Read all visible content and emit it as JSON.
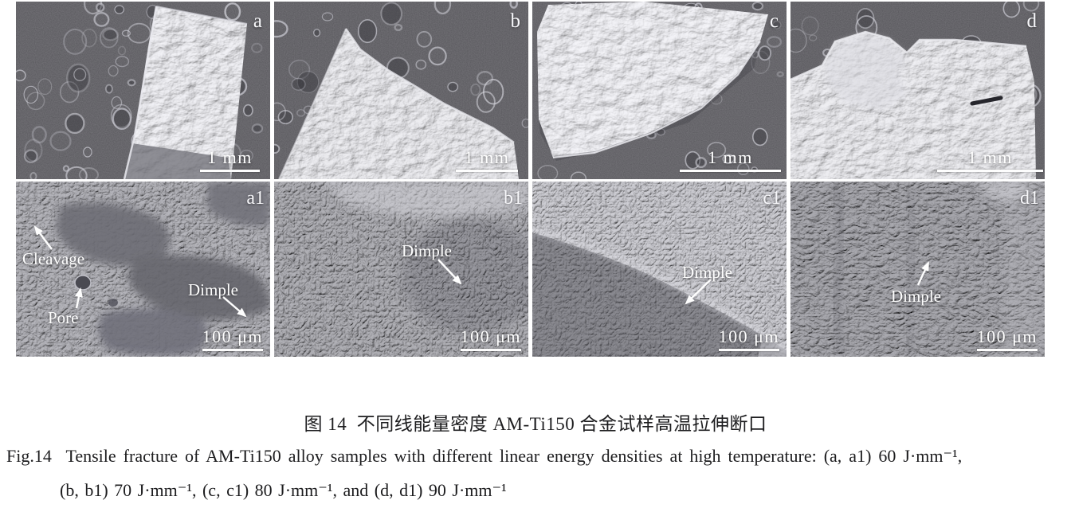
{
  "figure": {
    "panels": [
      {
        "id": "a",
        "label": "a",
        "scale_bar": "1 mm"
      },
      {
        "id": "b",
        "label": "b",
        "scale_bar": "1 mm"
      },
      {
        "id": "c",
        "label": "c",
        "scale_bar": "1 mm"
      },
      {
        "id": "d",
        "label": "d",
        "scale_bar": "1 mm"
      },
      {
        "id": "a1",
        "label": "a1",
        "scale_bar": "100 μm",
        "annotations": {
          "cleavage": "Cleavage",
          "pore": "Pore",
          "dimple": "Dimple"
        }
      },
      {
        "id": "b1",
        "label": "b1",
        "scale_bar": "100 μm",
        "annotations": {
          "dimple": "Dimple"
        }
      },
      {
        "id": "c1",
        "label": "c1",
        "scale_bar": "100 μm",
        "annotations": {
          "dimple": "Dimple"
        }
      },
      {
        "id": "d1",
        "label": "d1",
        "scale_bar": "100 μm",
        "annotations": {
          "dimple": "Dimple"
        }
      }
    ]
  },
  "caption": {
    "zh": "图 14  不同线能量密度 AM-Ti150 合金试样高温拉伸断口",
    "en_line1": "Fig.14  Tensile fracture of AM-Ti150 alloy samples with different linear energy densities at high temperature: (a, a1) 60 J·mm⁻¹,",
    "en_line2": "(b, b1) 70 J·mm⁻¹, (c, c1) 80 J·mm⁻¹, and (d, d1) 90 J·mm⁻¹"
  },
  "colors": {
    "page_background": "#ffffff",
    "sem_dark_background": "#57565b",
    "sem_specimen_gray": "#c7c7cc",
    "sem_dimple_gray": "#8f8f95",
    "annotation_white": "#ffffff",
    "caption_text": "#1d1d1f"
  }
}
